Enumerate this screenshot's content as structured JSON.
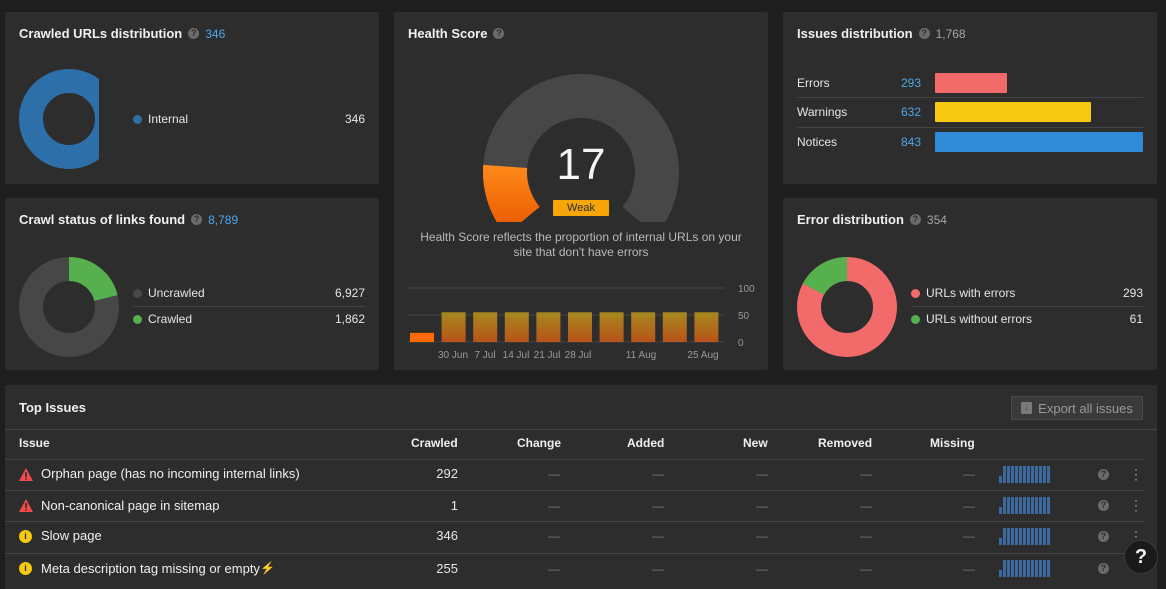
{
  "crawled": {
    "title": "Crawled URLs distribution",
    "count": "346",
    "legend": [
      {
        "label": "Internal",
        "value": "346",
        "color": "#2d6fa8"
      }
    ],
    "chart_data": {
      "type": "pie",
      "categories": [
        "Internal"
      ],
      "values": [
        346
      ]
    }
  },
  "crawl_status": {
    "title": "Crawl status of links found",
    "count": "8,789",
    "legend": [
      {
        "label": "Uncrawled",
        "value": "6,927",
        "color": "#474747"
      },
      {
        "label": "Crawled",
        "value": "1,862",
        "color": "#56b04e"
      }
    ],
    "chart_data": {
      "type": "pie",
      "categories": [
        "Uncrawled",
        "Crawled"
      ],
      "values": [
        6927,
        1862
      ]
    }
  },
  "health": {
    "title": "Health Score",
    "score": "17",
    "badge": "Weak",
    "score_value": 17,
    "description_line1": "Health Score reflects the proportion of internal URLs on your",
    "description_line2": "site that don't have errors",
    "y_ticks": [
      "100",
      "50",
      "0"
    ],
    "x_labels": [
      "30 Jun",
      "7 Jul",
      "14 Jul",
      "21 Jul",
      "28 Jul",
      "11 Aug",
      "25 Aug"
    ],
    "chart_data": {
      "type": "bar",
      "ylim": [
        0,
        100
      ],
      "values": [
        17,
        55,
        55,
        55,
        55,
        55,
        55,
        55,
        55,
        55
      ]
    }
  },
  "issues_dist": {
    "title": "Issues distribution",
    "count": "1,768",
    "rows": [
      {
        "label": "Errors",
        "value": "293",
        "color": "#f26a6a",
        "num": 293
      },
      {
        "label": "Warnings",
        "value": "632",
        "color": "#f6c80f",
        "num": 632
      },
      {
        "label": "Notices",
        "value": "843",
        "color": "#2f8ad8",
        "num": 843
      }
    ],
    "chart_data": {
      "type": "bar",
      "categories": [
        "Errors",
        "Warnings",
        "Notices"
      ],
      "values": [
        293,
        632,
        843
      ]
    }
  },
  "error_dist": {
    "title": "Error distribution",
    "count": "354",
    "legend": [
      {
        "label": "URLs with errors",
        "value": "293",
        "color": "#f26a6a"
      },
      {
        "label": "URLs without errors",
        "value": "61",
        "color": "#56b04e"
      }
    ],
    "chart_data": {
      "type": "pie",
      "categories": [
        "URLs with errors",
        "URLs without errors"
      ],
      "values": [
        293,
        61
      ]
    }
  },
  "top_issues": {
    "title": "Top Issues",
    "export_label": "Export all issues",
    "columns": [
      "Issue",
      "Crawled",
      "Change",
      "Added",
      "New",
      "Removed",
      "Missing"
    ],
    "rows": [
      {
        "name": "Orphan page (has no incoming internal links)",
        "severity": "error",
        "crawled": "292",
        "dash": "—"
      },
      {
        "name": "Non-canonical page in sitemap",
        "severity": "error",
        "crawled": "1",
        "dash": "—"
      },
      {
        "name": "Slow page",
        "severity": "notice",
        "crawled": "346",
        "dash": "—"
      },
      {
        "name": "Meta description tag missing or empty",
        "severity": "notice",
        "crawled": "255",
        "dash": "—",
        "lightning": true
      }
    ]
  },
  "help_button": "?",
  "colors": {
    "error": "#f04a4a",
    "notice": "#f6c80f",
    "accent": "#4ea6ea",
    "gauge_orange": "#ff6a00"
  }
}
